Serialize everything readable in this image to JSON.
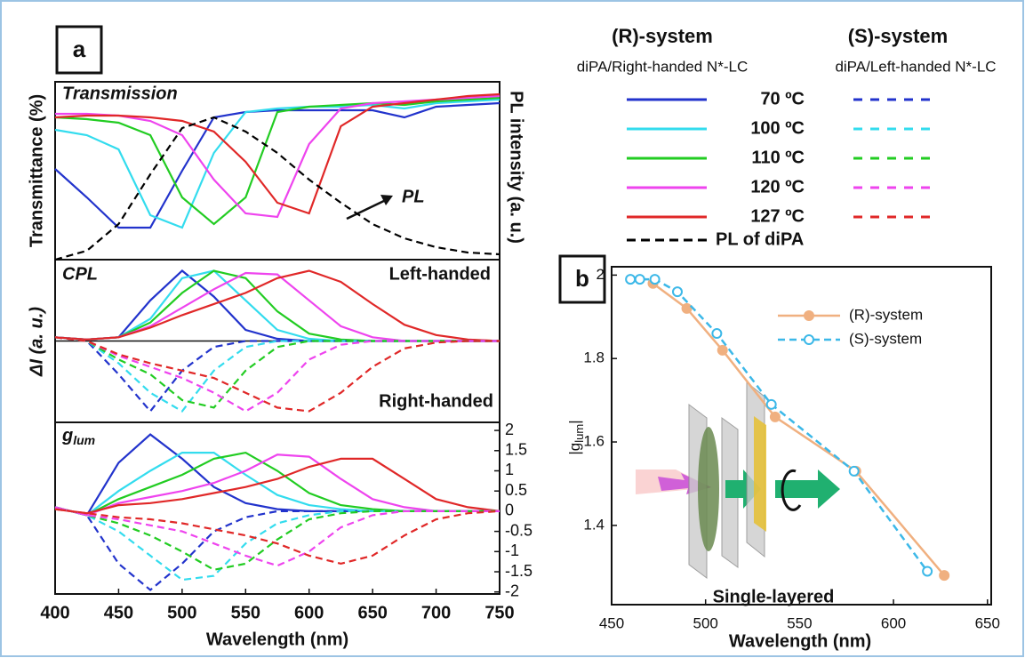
{
  "legend": {
    "groups": [
      {
        "title": "(R)-system",
        "subtitle": "diPA/Right-handed N*-LC"
      },
      {
        "title": "(S)-system",
        "subtitle": "diPA/Left-handed N*-LC"
      }
    ]
  },
  "chart_data": [
    {
      "type": "line",
      "panel": "a",
      "annotations": [
        "Transmission",
        "PL"
      ],
      "ylabel": "Transmittance (%)",
      "y2label": "PL intensity (a. u.)",
      "x": [
        400,
        425,
        450,
        475,
        500,
        525,
        550,
        575,
        600,
        625,
        650,
        675,
        700,
        725,
        750
      ],
      "xlim": [
        400,
        750
      ],
      "ylim": [
        0,
        1
      ],
      "series": [
        {
          "name": "70 ºC",
          "color": "#2233cc",
          "values": [
            0.51,
            0.35,
            0.18,
            0.18,
            0.5,
            0.8,
            0.83,
            0.84,
            0.84,
            0.84,
            0.84,
            0.8,
            0.86,
            0.87,
            0.88
          ]
        },
        {
          "name": "100 ºC",
          "color": "#33dcee",
          "values": [
            0.73,
            0.7,
            0.62,
            0.25,
            0.18,
            0.6,
            0.83,
            0.85,
            0.86,
            0.86,
            0.87,
            0.85,
            0.88,
            0.89,
            0.9
          ]
        },
        {
          "name": "110 ºC",
          "color": "#22cc22",
          "values": [
            0.8,
            0.79,
            0.77,
            0.7,
            0.35,
            0.2,
            0.35,
            0.83,
            0.86,
            0.87,
            0.88,
            0.87,
            0.89,
            0.9,
            0.91
          ]
        },
        {
          "name": "120 ºC",
          "color": "#ee44ee",
          "values": [
            0.82,
            0.82,
            0.81,
            0.78,
            0.7,
            0.45,
            0.26,
            0.24,
            0.65,
            0.85,
            0.88,
            0.89,
            0.9,
            0.91,
            0.92
          ]
        },
        {
          "name": "127 ºC",
          "color": "#e02828",
          "values": [
            0.8,
            0.81,
            0.81,
            0.8,
            0.78,
            0.72,
            0.55,
            0.32,
            0.26,
            0.75,
            0.86,
            0.88,
            0.9,
            0.92,
            0.93
          ]
        },
        {
          "name": "PL of diPA",
          "color": "#000000",
          "dash": true,
          "values": [
            0.0,
            0.05,
            0.2,
            0.48,
            0.74,
            0.8,
            0.72,
            0.6,
            0.45,
            0.32,
            0.2,
            0.12,
            0.07,
            0.04,
            0.03
          ]
        }
      ]
    },
    {
      "type": "line",
      "annotations": [
        "CPL",
        "Left-handed",
        "Right-handed"
      ],
      "ylabel": "ΔI (a. u.)",
      "zero_line": true,
      "x": [
        400,
        425,
        450,
        475,
        500,
        525,
        550,
        575,
        600,
        625,
        650,
        675,
        700,
        725,
        750
      ],
      "xlim": [
        400,
        750
      ],
      "ylim": [
        -1.1,
        1.1
      ],
      "series": [
        {
          "color": "#2233cc",
          "values": [
            0.05,
            0.02,
            0.05,
            0.55,
            0.95,
            0.6,
            0.15,
            0.03,
            0,
            0,
            0,
            0,
            0,
            0,
            0
          ]
        },
        {
          "color": "#33dcee",
          "values": [
            0.05,
            0.02,
            0.05,
            0.3,
            0.85,
            0.95,
            0.55,
            0.15,
            0.03,
            0,
            0,
            0,
            0,
            0,
            0
          ]
        },
        {
          "color": "#22cc22",
          "values": [
            0.05,
            0.02,
            0.05,
            0.25,
            0.65,
            0.95,
            0.85,
            0.4,
            0.1,
            0.02,
            0,
            0,
            0,
            0,
            0
          ]
        },
        {
          "color": "#ee44ee",
          "values": [
            0.05,
            0.02,
            0.05,
            0.2,
            0.45,
            0.7,
            0.92,
            0.9,
            0.55,
            0.2,
            0.05,
            0,
            0,
            0,
            0
          ]
        },
        {
          "color": "#e02828",
          "values": [
            0.05,
            0.02,
            0.05,
            0.18,
            0.35,
            0.5,
            0.65,
            0.85,
            0.95,
            0.8,
            0.5,
            0.22,
            0.08,
            0.02,
            0
          ]
        },
        {
          "color": "#2233cc",
          "dash": true,
          "values": [
            0.05,
            0,
            -0.45,
            -0.95,
            -0.4,
            -0.08,
            0,
            0,
            0,
            0,
            0,
            0,
            0,
            0,
            0
          ]
        },
        {
          "color": "#33dcee",
          "dash": true,
          "values": [
            0.05,
            0,
            -0.3,
            -0.7,
            -0.95,
            -0.4,
            -0.08,
            0,
            0,
            0,
            0,
            0,
            0,
            0,
            0
          ]
        },
        {
          "color": "#22cc22",
          "dash": true,
          "values": [
            0.05,
            0,
            -0.25,
            -0.45,
            -0.8,
            -0.9,
            -0.4,
            -0.08,
            0,
            0,
            0,
            0,
            0,
            0,
            0
          ]
        },
        {
          "color": "#ee44ee",
          "dash": true,
          "values": [
            0.05,
            0,
            -0.2,
            -0.35,
            -0.5,
            -0.7,
            -0.95,
            -0.7,
            -0.25,
            -0.05,
            0,
            0,
            0,
            0,
            0
          ]
        },
        {
          "color": "#e02828",
          "dash": true,
          "values": [
            0.05,
            0,
            -0.18,
            -0.3,
            -0.4,
            -0.5,
            -0.7,
            -0.9,
            -0.95,
            -0.7,
            -0.35,
            -0.1,
            -0.02,
            0,
            0
          ]
        }
      ]
    },
    {
      "type": "line",
      "label": [
        "g",
        "lum"
      ],
      "xlabel": "Wavelength (nm)",
      "x": [
        400,
        425,
        450,
        475,
        500,
        525,
        550,
        575,
        600,
        625,
        650,
        675,
        700,
        725,
        750
      ],
      "xlim": [
        400,
        750
      ],
      "ylim": [
        -2.05,
        2.2
      ],
      "xticks": [
        400,
        450,
        500,
        550,
        600,
        650,
        700,
        750
      ],
      "y2ticks": [
        2,
        1.5,
        1,
        0.5,
        0,
        -0.5,
        -1,
        -1.5,
        -2
      ],
      "series": [
        {
          "color": "#2233cc",
          "values": [
            0.1,
            -0.1,
            1.2,
            1.9,
            1.3,
            0.6,
            0.2,
            0.05,
            0,
            0,
            0,
            0,
            0,
            0,
            0
          ]
        },
        {
          "color": "#33dcee",
          "values": [
            0.1,
            -0.1,
            0.5,
            1.0,
            1.45,
            1.45,
            0.9,
            0.4,
            0.15,
            0.05,
            0,
            0,
            0,
            0,
            0
          ]
        },
        {
          "color": "#22cc22",
          "values": [
            0.1,
            -0.1,
            0.3,
            0.6,
            0.9,
            1.3,
            1.45,
            1.0,
            0.45,
            0.15,
            0.05,
            0,
            0,
            0,
            0
          ]
        },
        {
          "color": "#ee44ee",
          "values": [
            0.1,
            -0.1,
            0.2,
            0.35,
            0.5,
            0.7,
            1.0,
            1.4,
            1.35,
            0.8,
            0.3,
            0.1,
            0,
            0,
            0
          ]
        },
        {
          "color": "#e02828",
          "values": [
            0.05,
            -0.05,
            0.15,
            0.2,
            0.3,
            0.45,
            0.6,
            0.8,
            1.1,
            1.3,
            1.3,
            0.8,
            0.3,
            0.1,
            0
          ]
        },
        {
          "color": "#2233cc",
          "dash": true,
          "values": [
            0.1,
            -0.1,
            -1.3,
            -1.95,
            -1.3,
            -0.5,
            -0.15,
            0,
            0,
            0,
            0,
            0,
            0,
            0,
            0
          ]
        },
        {
          "color": "#33dcee",
          "dash": true,
          "values": [
            0.1,
            -0.1,
            -0.5,
            -1.1,
            -1.7,
            -1.6,
            -0.8,
            -0.3,
            -0.1,
            0,
            0,
            0,
            0,
            0,
            0
          ]
        },
        {
          "color": "#22cc22",
          "dash": true,
          "values": [
            0.1,
            -0.1,
            -0.3,
            -0.6,
            -1.0,
            -1.45,
            -1.3,
            -0.7,
            -0.2,
            -0.05,
            0,
            0,
            0,
            0,
            0
          ]
        },
        {
          "color": "#ee44ee",
          "dash": true,
          "values": [
            0.1,
            -0.1,
            -0.2,
            -0.35,
            -0.5,
            -0.8,
            -1.1,
            -1.35,
            -1.0,
            -0.4,
            -0.1,
            0,
            0,
            0,
            0
          ]
        },
        {
          "color": "#e02828",
          "dash": true,
          "values": [
            0.05,
            -0.05,
            -0.15,
            -0.2,
            -0.3,
            -0.45,
            -0.6,
            -0.8,
            -1.1,
            -1.3,
            -1.1,
            -0.6,
            -0.2,
            -0.05,
            0
          ]
        }
      ]
    },
    {
      "type": "line",
      "panel": "b",
      "xlabel": "Wavelength (nm)",
      "ylabel": [
        "|g",
        "lum",
        "|"
      ],
      "annotation": "Single-layered",
      "legend": "upper right",
      "xlim": [
        450,
        652
      ],
      "ylim": [
        1.21,
        2.02
      ],
      "xticks": [
        450,
        500,
        550,
        600,
        650
      ],
      "yticks": [
        1.4,
        1.6,
        1.8,
        2
      ],
      "series": [
        {
          "name": "(R)-system",
          "color": "#f0b080",
          "marker_filled": true,
          "x": [
            472,
            490,
            509,
            537,
            580,
            627
          ],
          "values": [
            1.98,
            1.92,
            1.82,
            1.66,
            1.53,
            1.28
          ]
        },
        {
          "name": "(S)-system",
          "color": "#3cb8e8",
          "dash": true,
          "marker_filled": false,
          "x": [
            460,
            465,
            473,
            485,
            506,
            535,
            579,
            618
          ],
          "values": [
            1.99,
            1.99,
            1.99,
            1.96,
            1.86,
            1.69,
            1.53,
            1.29
          ]
        }
      ]
    }
  ]
}
